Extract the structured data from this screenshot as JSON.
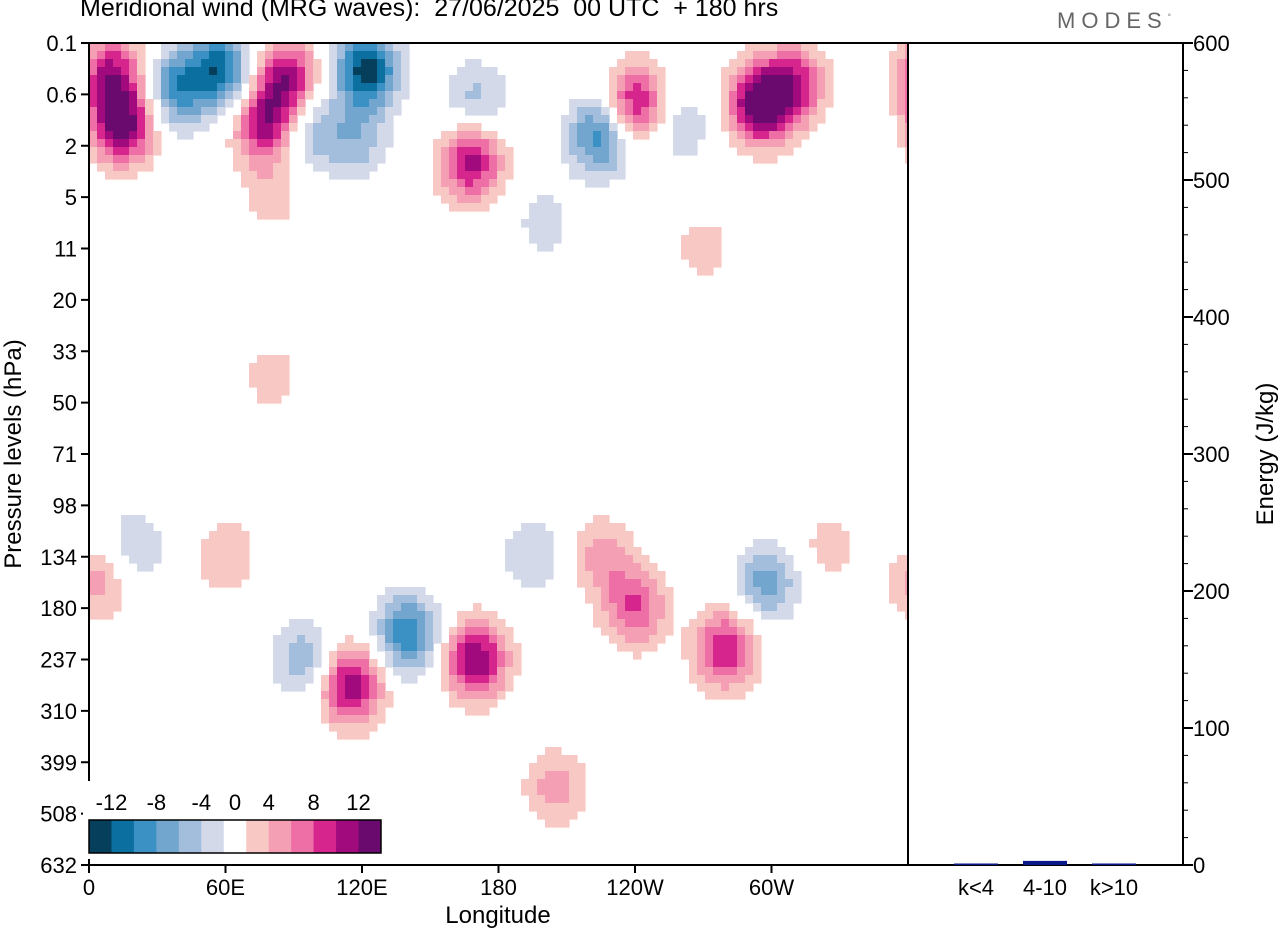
{
  "header": {
    "title": "Meridional wind (MRG waves):  27/06/2025  00 UTC  + 180 hrs",
    "logo": "MODES",
    "logo_mark": "°"
  },
  "chart_data": [
    {
      "type": "heatmap",
      "title": "Meridional wind (MRG waves):  27/06/2025  00 UTC  + 180 hrs",
      "xlabel": "Longitude",
      "ylabel": "Pressure levels (hPa)",
      "x_ticks": [
        {
          "lon": 0,
          "label": "0"
        },
        {
          "lon": 60,
          "label": "60E"
        },
        {
          "lon": 120,
          "label": "120E"
        },
        {
          "lon": 180,
          "label": "180"
        },
        {
          "lon": 240,
          "label": "120W"
        },
        {
          "lon": 300,
          "label": "60W"
        }
      ],
      "xlim": [
        0,
        360
      ],
      "y_levels": [
        "0.1",
        "0.6",
        "2",
        "5",
        "11",
        "20",
        "33",
        "50",
        "71",
        "98",
        "134",
        "180",
        "237",
        "310",
        "399",
        "508",
        "632"
      ],
      "colorbar": {
        "labels": [
          "-12",
          "-8",
          "-4",
          "0",
          "4",
          "8",
          "12"
        ],
        "levels": [
          -14,
          -12,
          -10,
          -8,
          -6,
          -4,
          -2,
          2,
          4,
          6,
          8,
          10,
          12,
          14
        ],
        "colors": [
          "#053f5c",
          "#0b6fa0",
          "#3b90c4",
          "#72a6cf",
          "#a3bedd",
          "#d3d9e9",
          "#ffffff",
          "#f8c8c4",
          "#f59fb5",
          "#ee6fa6",
          "#d6268e",
          "#a00a7d",
          "#6a0a6e"
        ]
      },
      "features": [
        {
          "lon": 10,
          "level": 0.6,
          "value": 10
        },
        {
          "lon": 15,
          "level": 1.6,
          "value": 13
        },
        {
          "lon": 38,
          "level": 0.9,
          "value": -9
        },
        {
          "lon": 58,
          "level": 0.5,
          "value": -11
        },
        {
          "lon": 87,
          "level": 0.7,
          "value": 11
        },
        {
          "lon": 78,
          "level": 1.6,
          "value": 11
        },
        {
          "lon": 122,
          "level": 0.5,
          "value": -13
        },
        {
          "lon": 96,
          "level": 1.7,
          "value": -6
        },
        {
          "lon": 118,
          "level": 1.9,
          "value": -5
        },
        {
          "lon": 170,
          "level": 1.1,
          "value": -5
        },
        {
          "lon": 168,
          "level": 2.3,
          "value": 11
        },
        {
          "lon": 225,
          "level": 1.8,
          "value": -10
        },
        {
          "lon": 240,
          "level": 1.2,
          "value": 11
        },
        {
          "lon": 260,
          "level": 1.6,
          "value": -4
        },
        {
          "lon": 295,
          "level": 1.2,
          "value": 14
        },
        {
          "lon": 310,
          "level": 0.8,
          "value": 9
        },
        {
          "lon": 80,
          "level": 3.0,
          "value": 3
        },
        {
          "lon": 200,
          "level": 3.5,
          "value": -3
        },
        {
          "lon": 270,
          "level": 4.0,
          "value": 3
        },
        {
          "lon": 80,
          "level": 6.5,
          "value": 3
        },
        {
          "lon": 35,
          "level": 7.0,
          "value": -2
        },
        {
          "lon": 5,
          "level": 10.5,
          "value": 5
        },
        {
          "lon": 20,
          "level": 9.8,
          "value": -4
        },
        {
          "lon": 60,
          "level": 10.0,
          "value": 4
        },
        {
          "lon": 95,
          "level": 12.0,
          "value": -6
        },
        {
          "lon": 115,
          "level": 12.5,
          "value": 12
        },
        {
          "lon": 140,
          "level": 11.5,
          "value": -10
        },
        {
          "lon": 170,
          "level": 12.0,
          "value": 12
        },
        {
          "lon": 195,
          "level": 10.0,
          "value": -4
        },
        {
          "lon": 205,
          "level": 14.5,
          "value": 5
        },
        {
          "lon": 225,
          "level": 10.0,
          "value": 5
        },
        {
          "lon": 240,
          "level": 11.0,
          "value": 8
        },
        {
          "lon": 280,
          "level": 11.8,
          "value": 10
        },
        {
          "lon": 298,
          "level": 10.5,
          "value": -7
        },
        {
          "lon": 325,
          "level": 9.8,
          "value": 3
        }
      ]
    },
    {
      "type": "bar",
      "categories": [
        "k<4",
        "4-10",
        "k>10"
      ],
      "values": [
        0,
        3,
        0
      ],
      "ylabel": "Energy (J/kg)",
      "ylim": [
        0,
        600
      ],
      "y_ticks": [
        0,
        100,
        200,
        300,
        400,
        500,
        600
      ],
      "bar_color": "#0a1a8c"
    }
  ]
}
